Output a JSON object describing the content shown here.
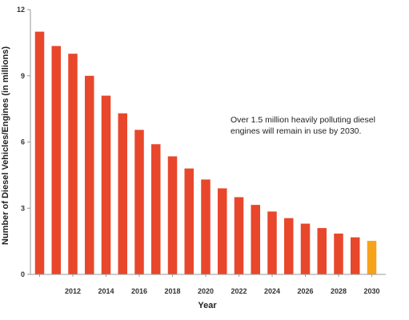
{
  "chart_data": {
    "type": "bar",
    "title": "",
    "xlabel": "Year",
    "ylabel": "Number of Diesel Vehicles/Engines (in millions)",
    "ylim": [
      0,
      12
    ],
    "yticks": [
      0,
      3,
      6,
      9,
      12
    ],
    "grid": false,
    "categories": [
      "2010",
      "2011",
      "2012",
      "2013",
      "2014",
      "2015",
      "2016",
      "2017",
      "2018",
      "2019",
      "2020",
      "2021",
      "2022",
      "2023",
      "2024",
      "2025",
      "2026",
      "2027",
      "2028",
      "2029",
      "2030"
    ],
    "x_tick_labels": [
      "2012",
      "2014",
      "2016",
      "2018",
      "2020",
      "2022",
      "2024",
      "2026",
      "2028",
      "2030"
    ],
    "values": [
      11.0,
      10.35,
      10.0,
      9.0,
      8.1,
      7.3,
      6.55,
      5.9,
      5.35,
      4.8,
      4.3,
      3.9,
      3.5,
      3.15,
      2.85,
      2.55,
      2.3,
      2.1,
      1.85,
      1.68,
      1.52
    ],
    "colors": {
      "bar": "#e8472c",
      "highlight": "#f7a21b",
      "axis": "#999999"
    },
    "highlight_category": "2030",
    "annotations": [
      "Over 1.5 million heavily polluting diesel",
      "engines will remain in use by 2030."
    ]
  }
}
